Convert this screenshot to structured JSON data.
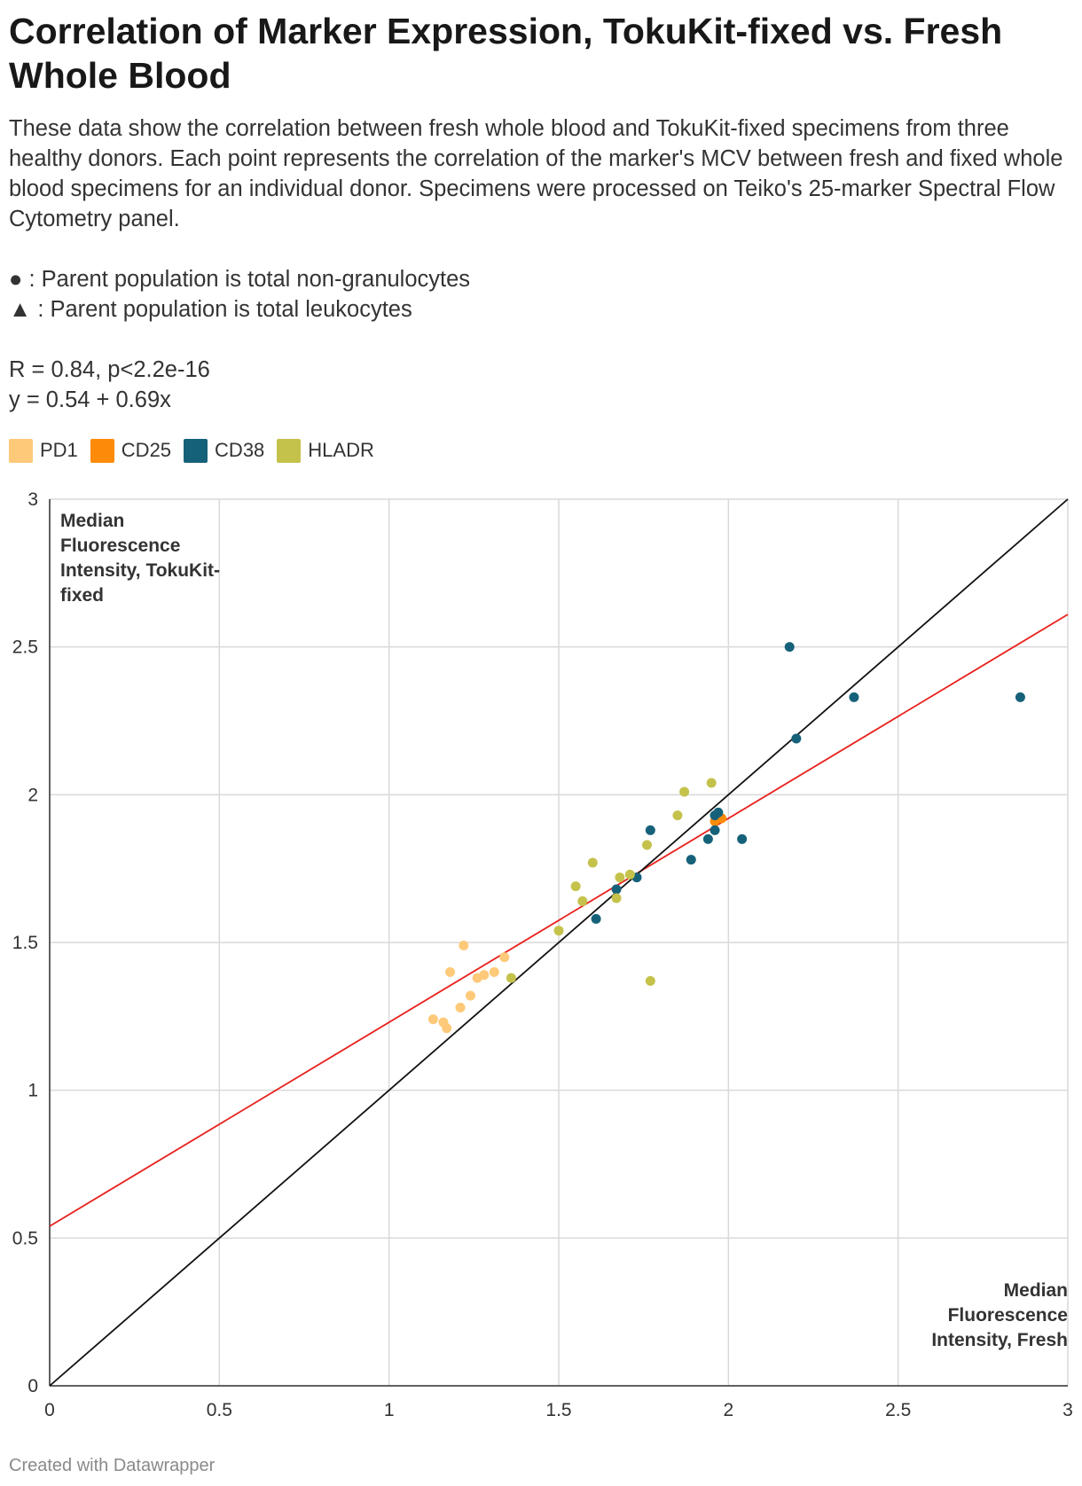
{
  "title": "Correlation of Marker Expression, TokuKit-fixed vs. Fresh Whole Blood",
  "description": {
    "text": "These data show the correlation between fresh whole blood and TokuKit-fixed specimens from three healthy donors. Each point represents the correlation of the marker's MCV between fresh and fixed whole blood specimens for an individual donor. Specimens were processed on Teiko's 25-marker Spectral Flow Cytometry panel.",
    "note_circle": "● : Parent population is total non-granulocytes",
    "note_triangle": "▲ : Parent population is total leukocytes",
    "stat_r": "R = 0.84, p<2.2e-16",
    "stat_eq": "y = 0.54 + 0.69x"
  },
  "footer": "Created with Datawrapper",
  "colors": {
    "PD1": "#fec979",
    "CD25": "#fd8b0a",
    "CD38": "#16617a",
    "HLADR": "#c5c24c",
    "regression": "#e8201c",
    "identity": "#111111",
    "grid": "#d9d9d9"
  },
  "chart_data": {
    "type": "scatter",
    "xlabel": "Median Fluorescence Intensity, Fresh",
    "ylabel": "Median Fluorescence Intensity, TokuKit-fixed",
    "xlim": [
      0,
      3
    ],
    "ylim": [
      0,
      3
    ],
    "x_ticks": [
      "0",
      "0.5",
      "1",
      "1.5",
      "2",
      "2.5",
      "3"
    ],
    "y_ticks": [
      "0",
      "0.5",
      "1",
      "1.5",
      "2",
      "2.5",
      "3"
    ],
    "grid": true,
    "lines": [
      {
        "name": "regression",
        "intercept": 0.54,
        "slope": 0.69
      },
      {
        "name": "identity",
        "intercept": 0,
        "slope": 1
      }
    ],
    "series": [
      {
        "name": "PD1",
        "points": [
          [
            1.13,
            1.24
          ],
          [
            1.16,
            1.23
          ],
          [
            1.17,
            1.21
          ],
          [
            1.18,
            1.4
          ],
          [
            1.21,
            1.28
          ],
          [
            1.22,
            1.49
          ],
          [
            1.24,
            1.32
          ],
          [
            1.26,
            1.38
          ],
          [
            1.28,
            1.39
          ],
          [
            1.31,
            1.4
          ],
          [
            1.34,
            1.45
          ]
        ]
      },
      {
        "name": "CD25",
        "points": [
          [
            1.96,
            1.91
          ],
          [
            1.97,
            1.92
          ],
          [
            1.98,
            1.92
          ]
        ]
      },
      {
        "name": "CD38",
        "points": [
          [
            1.61,
            1.58
          ],
          [
            1.67,
            1.68
          ],
          [
            1.73,
            1.72
          ],
          [
            1.77,
            1.88
          ],
          [
            1.89,
            1.78
          ],
          [
            1.94,
            1.85
          ],
          [
            1.96,
            1.93
          ],
          [
            1.96,
            1.88
          ],
          [
            1.97,
            1.94
          ],
          [
            2.04,
            1.85
          ],
          [
            2.18,
            2.5
          ],
          [
            2.2,
            2.19
          ],
          [
            2.37,
            2.33
          ],
          [
            2.86,
            2.33
          ]
        ]
      },
      {
        "name": "HLADR",
        "points": [
          [
            1.36,
            1.38
          ],
          [
            1.5,
            1.54
          ],
          [
            1.55,
            1.69
          ],
          [
            1.57,
            1.64
          ],
          [
            1.6,
            1.77
          ],
          [
            1.67,
            1.65
          ],
          [
            1.68,
            1.72
          ],
          [
            1.71,
            1.73
          ],
          [
            1.76,
            1.83
          ],
          [
            1.77,
            1.37
          ],
          [
            1.85,
            1.93
          ],
          [
            1.87,
            2.01
          ],
          [
            1.95,
            2.04
          ]
        ]
      }
    ]
  }
}
